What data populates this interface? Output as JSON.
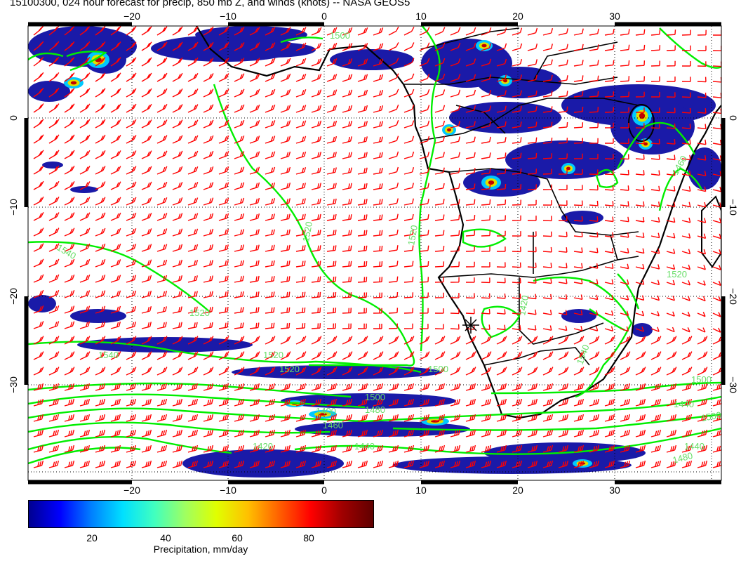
{
  "title": "15100300, 024 hour forecast for precip, 850 mb Z, and winds (knots) -- NASA GEOS5",
  "map": {
    "lon_ticks": [
      "−20",
      "−10",
      "0",
      "10",
      "20",
      "30"
    ],
    "lat_ticks": [
      "0",
      "−10",
      "−20",
      "−30"
    ],
    "contour_labels": [
      "1500",
      "1520",
      "1540",
      "1520",
      "1520",
      "1520",
      "1500",
      "1500",
      "1540",
      "1520",
      "1500",
      "1480",
      "1460",
      "1440",
      "1420",
      "1400",
      "1440",
      "1440",
      "1500",
      "1480",
      "1460",
      "1420",
      "1540",
      "1520"
    ],
    "marker": "station-star",
    "colors": {
      "contour": "#00ee00",
      "contour_label": "#66dd66",
      "wind_barb": "#ff0000",
      "coastline": "#000000",
      "precip_low": "#1a1aa8"
    }
  },
  "colorbar": {
    "title": "Precipitation, mm/day",
    "tick_labels": [
      "20",
      "40",
      "60",
      "80"
    ],
    "colors": [
      "#000090",
      "#0000ff",
      "#0080ff",
      "#00e0ff",
      "#40ffc0",
      "#a0ff60",
      "#e0ff00",
      "#ffc000",
      "#ff6000",
      "#ff0000",
      "#a00000",
      "#600000"
    ]
  }
}
